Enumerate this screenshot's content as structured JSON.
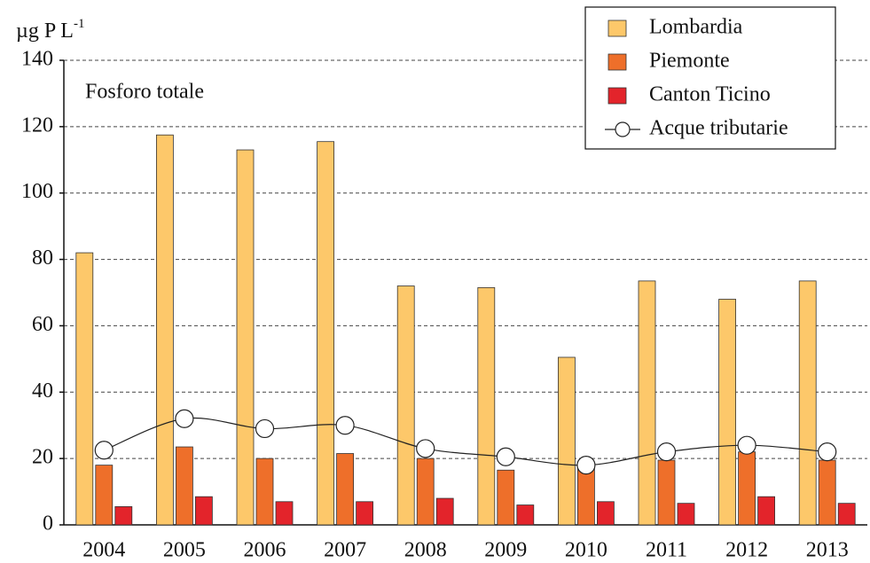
{
  "chart_data": {
    "type": "bar",
    "y_label": {
      "text": "µg P L",
      "superscript": "-1"
    },
    "annotation": "Fosforo totale",
    "categories": [
      "2004",
      "2005",
      "2006",
      "2007",
      "2008",
      "2009",
      "2010",
      "2011",
      "2012",
      "2013"
    ],
    "series": [
      {
        "name": "Lombardia",
        "color": "#fdc86a",
        "values": [
          82,
          117.5,
          113,
          115.5,
          72,
          71.5,
          50.5,
          73.5,
          68,
          73.5
        ]
      },
      {
        "name": "Piemonte",
        "color": "#ee6f2a",
        "values": [
          18,
          23.5,
          20,
          21.5,
          20,
          16.5,
          18,
          19.5,
          22,
          19.5
        ]
      },
      {
        "name": "Canton Ticino",
        "color": "#e3242b",
        "values": [
          5.5,
          8.5,
          7,
          7,
          8,
          6,
          7,
          6.5,
          8.5,
          6.5
        ]
      },
      {
        "name": "Acque tributarie",
        "type": "line",
        "color": "#222222",
        "values": [
          22.5,
          32,
          29,
          30,
          23,
          20.5,
          18,
          22,
          24,
          22
        ]
      }
    ],
    "ylim": [
      0,
      140
    ],
    "yticks": [
      0,
      20,
      40,
      60,
      80,
      100,
      120,
      140
    ],
    "grid": true,
    "legend": "top-right"
  }
}
